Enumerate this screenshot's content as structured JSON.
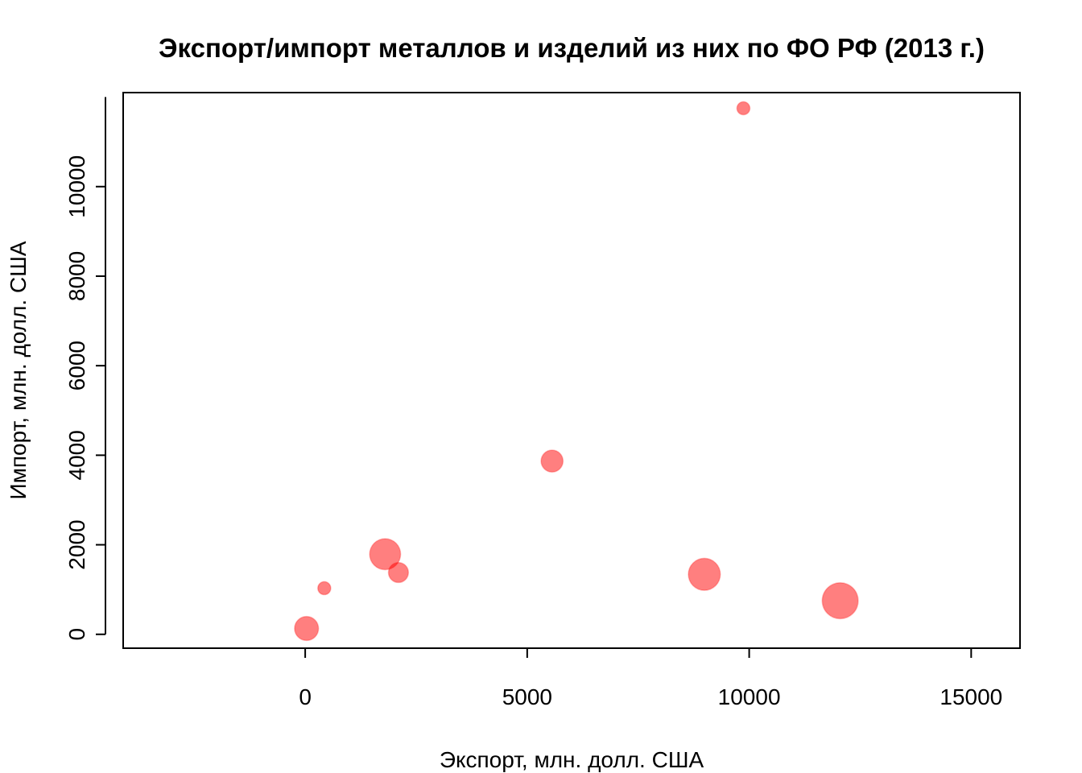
{
  "chart_data": {
    "type": "scatter",
    "title": "Экспорт/импорт металлов и изделий из них по ФО РФ (2013 г.)",
    "xlabel": "Экспорт, млн. долл. США",
    "ylabel": "Импорт, млн. долл. США",
    "xlim": [
      -4100,
      16100
    ],
    "ylim": [
      -310,
      12100
    ],
    "xticks": [
      0,
      5000,
      10000,
      15000
    ],
    "yticks": [
      0,
      2000,
      4000,
      6000,
      8000,
      10000
    ],
    "xtick_labels": [
      "0",
      "5000",
      "10000",
      "15000"
    ],
    "ytick_labels": [
      "0",
      "2000",
      "4000",
      "6000",
      "8000",
      "10000"
    ],
    "grid": false,
    "point_color": "#ff0000",
    "point_opacity": 0.5,
    "points": [
      {
        "x": 30,
        "y": 130,
        "size": 2.4
      },
      {
        "x": 430,
        "y": 1030,
        "size": 1.3
      },
      {
        "x": 1800,
        "y": 1790,
        "size": 3.1
      },
      {
        "x": 2100,
        "y": 1380,
        "size": 2.0
      },
      {
        "x": 5560,
        "y": 3870,
        "size": 2.2
      },
      {
        "x": 8990,
        "y": 1340,
        "size": 3.2
      },
      {
        "x": 9870,
        "y": 11750,
        "size": 1.3
      },
      {
        "x": 12050,
        "y": 750,
        "size": 3.6
      }
    ]
  }
}
